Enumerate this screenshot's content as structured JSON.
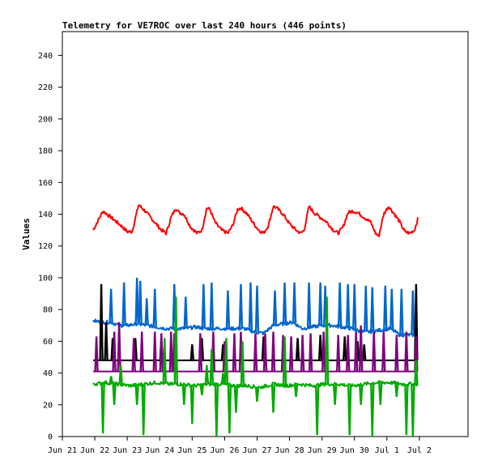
{
  "chart_data": {
    "type": "line",
    "title": "Telemetry for VE7ROC over last 240 hours (446 points)",
    "ylabel": "Values",
    "xlabel": "",
    "ylim": [
      0,
      255
    ],
    "xlim": [
      0,
      12.5
    ],
    "yticks": [
      0,
      20,
      40,
      60,
      80,
      100,
      120,
      140,
      160,
      180,
      200,
      220,
      240
    ],
    "x_tick_labels": [
      "Jun 21",
      "Jun 22",
      "Jun 23",
      "Jun 24",
      "Jun 25",
      "Jun 26",
      "Jun 27",
      "Jun 28",
      "Jun 29",
      "Jun 30",
      "Jul 1",
      "Jul 2"
    ],
    "x_tick_positions": [
      0,
      1,
      2,
      3,
      4,
      5,
      6,
      7,
      8,
      9,
      10,
      11
    ],
    "grid": false,
    "data_x_range": [
      0.95,
      10.95
    ],
    "series": [
      {
        "color": "#ff0000",
        "baseline": 133,
        "points": [
          [
            0.95,
            130
          ],
          [
            1.1,
            136
          ],
          [
            1.25,
            142
          ],
          [
            1.5,
            138
          ],
          [
            1.8,
            133
          ],
          [
            2.0,
            129
          ],
          [
            2.15,
            129
          ],
          [
            2.35,
            146
          ],
          [
            2.55,
            142
          ],
          [
            2.8,
            136
          ],
          [
            3.05,
            130
          ],
          [
            3.2,
            128
          ],
          [
            3.35,
            138
          ],
          [
            3.5,
            144
          ],
          [
            3.6,
            141
          ],
          [
            3.75,
            140
          ],
          [
            3.95,
            132
          ],
          [
            4.15,
            128
          ],
          [
            4.3,
            130
          ],
          [
            4.45,
            144
          ],
          [
            4.55,
            143
          ],
          [
            4.7,
            135
          ],
          [
            4.9,
            130
          ],
          [
            5.1,
            128
          ],
          [
            5.25,
            133
          ],
          [
            5.4,
            143
          ],
          [
            5.5,
            144
          ],
          [
            5.7,
            140
          ],
          [
            5.9,
            134
          ],
          [
            6.05,
            130
          ],
          [
            6.2,
            128
          ],
          [
            6.35,
            133
          ],
          [
            6.5,
            145
          ],
          [
            6.6,
            144
          ],
          [
            6.8,
            140
          ],
          [
            7.0,
            134
          ],
          [
            7.2,
            130
          ],
          [
            7.35,
            128
          ],
          [
            7.45,
            130
          ],
          [
            7.6,
            145
          ],
          [
            7.75,
            141
          ],
          [
            7.95,
            138
          ],
          [
            8.15,
            135
          ],
          [
            8.35,
            130
          ],
          [
            8.5,
            128
          ],
          [
            8.65,
            132
          ],
          [
            8.8,
            141
          ],
          [
            8.95,
            142
          ],
          [
            9.1,
            141
          ],
          [
            9.3,
            138
          ],
          [
            9.5,
            135
          ],
          [
            9.65,
            128
          ],
          [
            9.75,
            126
          ],
          [
            9.9,
            140
          ],
          [
            10.05,
            145
          ],
          [
            10.2,
            141
          ],
          [
            10.4,
            135
          ],
          [
            10.55,
            129
          ],
          [
            10.7,
            128
          ],
          [
            10.85,
            130
          ],
          [
            10.95,
            137
          ]
        ]
      },
      {
        "color": "#0066cc",
        "baseline": 70,
        "points": [
          [
            0.95,
            73
          ],
          [
            1.2,
            72
          ],
          [
            1.5,
            72
          ],
          [
            1.75,
            70
          ],
          [
            2.0,
            70
          ],
          [
            2.3,
            71
          ],
          [
            2.6,
            70
          ],
          [
            2.9,
            69
          ],
          [
            3.2,
            68
          ],
          [
            3.5,
            68
          ],
          [
            3.8,
            68
          ],
          [
            4.1,
            69
          ],
          [
            4.4,
            68
          ],
          [
            4.7,
            68
          ],
          [
            5.0,
            68
          ],
          [
            5.3,
            68
          ],
          [
            5.6,
            68
          ],
          [
            5.9,
            66
          ],
          [
            6.2,
            65
          ],
          [
            6.5,
            70
          ],
          [
            6.8,
            71
          ],
          [
            7.1,
            72
          ],
          [
            7.4,
            68
          ],
          [
            7.7,
            69
          ],
          [
            8.0,
            70
          ],
          [
            8.3,
            70
          ],
          [
            8.6,
            69
          ],
          [
            8.9,
            68
          ],
          [
            9.2,
            66
          ],
          [
            9.5,
            66
          ],
          [
            9.8,
            67
          ],
          [
            10.1,
            68
          ],
          [
            10.4,
            64
          ],
          [
            10.7,
            64
          ],
          [
            10.95,
            64
          ]
        ],
        "spikes": [
          [
            1.5,
            93
          ],
          [
            1.9,
            97
          ],
          [
            2.0,
            70
          ],
          [
            2.3,
            100
          ],
          [
            2.4,
            98
          ],
          [
            2.6,
            87
          ],
          [
            2.85,
            93
          ],
          [
            3.45,
            96
          ],
          [
            3.8,
            88
          ],
          [
            4.35,
            96
          ],
          [
            4.6,
            97
          ],
          [
            5.1,
            92
          ],
          [
            5.5,
            96
          ],
          [
            5.8,
            97
          ],
          [
            6.0,
            95
          ],
          [
            6.55,
            92
          ],
          [
            6.85,
            97
          ],
          [
            7.15,
            97
          ],
          [
            7.6,
            97
          ],
          [
            7.95,
            97
          ],
          [
            8.1,
            95
          ],
          [
            8.55,
            97
          ],
          [
            8.8,
            96
          ],
          [
            9.0,
            96
          ],
          [
            9.35,
            95
          ],
          [
            9.55,
            94
          ],
          [
            9.95,
            95
          ],
          [
            10.15,
            93
          ],
          [
            10.45,
            93
          ],
          [
            10.8,
            92
          ]
        ]
      },
      {
        "color": "#000000",
        "baseline": 48,
        "spikes": [
          [
            1.2,
            96
          ],
          [
            1.35,
            72
          ],
          [
            1.55,
            62
          ],
          [
            2.25,
            62
          ],
          [
            3.05,
            62
          ],
          [
            4.0,
            58
          ],
          [
            4.3,
            62
          ],
          [
            4.95,
            58
          ],
          [
            6.2,
            63
          ],
          [
            7.25,
            62
          ],
          [
            7.95,
            64
          ],
          [
            8.7,
            63
          ],
          [
            9.1,
            60
          ],
          [
            9.3,
            58
          ],
          [
            10.9,
            96
          ]
        ]
      },
      {
        "color": "#7f007f",
        "baseline": 41,
        "spikes": [
          [
            1.05,
            63
          ],
          [
            1.6,
            66
          ],
          [
            1.75,
            72
          ],
          [
            2.2,
            62
          ],
          [
            2.45,
            66
          ],
          [
            2.85,
            66
          ],
          [
            3.05,
            65
          ],
          [
            3.35,
            66
          ],
          [
            3.45,
            65
          ],
          [
            4.25,
            65
          ],
          [
            4.65,
            66
          ],
          [
            5.0,
            60
          ],
          [
            5.3,
            65
          ],
          [
            5.5,
            66
          ],
          [
            5.95,
            65
          ],
          [
            6.25,
            65
          ],
          [
            6.5,
            66
          ],
          [
            6.8,
            64
          ],
          [
            7.05,
            63
          ],
          [
            7.4,
            64
          ],
          [
            7.65,
            65
          ],
          [
            8.05,
            66
          ],
          [
            8.5,
            64
          ],
          [
            8.8,
            64
          ],
          [
            9.05,
            66
          ],
          [
            9.2,
            70
          ],
          [
            9.6,
            66
          ],
          [
            9.9,
            66
          ],
          [
            10.3,
            64
          ],
          [
            10.6,
            66
          ],
          [
            10.9,
            63
          ]
        ]
      },
      {
        "color": "#00aa00",
        "baseline": 34,
        "points": [
          [
            0.95,
            33
          ],
          [
            1.3,
            34
          ],
          [
            1.7,
            33
          ],
          [
            2.1,
            32
          ],
          [
            2.5,
            33
          ],
          [
            2.9,
            34
          ],
          [
            3.3,
            33
          ],
          [
            3.7,
            33
          ],
          [
            4.1,
            32
          ],
          [
            4.5,
            33
          ],
          [
            4.9,
            33
          ],
          [
            5.3,
            32
          ],
          [
            5.7,
            32
          ],
          [
            6.1,
            31
          ],
          [
            6.5,
            33
          ],
          [
            6.9,
            32
          ],
          [
            7.3,
            33
          ],
          [
            7.7,
            32
          ],
          [
            8.1,
            33
          ],
          [
            8.5,
            33
          ],
          [
            8.9,
            32
          ],
          [
            9.3,
            33
          ],
          [
            9.7,
            34
          ],
          [
            10.1,
            34
          ],
          [
            10.5,
            33
          ],
          [
            10.95,
            33
          ]
        ],
        "spikes": [
          [
            1.25,
            2
          ],
          [
            1.5,
            38
          ],
          [
            1.6,
            20
          ],
          [
            1.8,
            45
          ],
          [
            2.3,
            20
          ],
          [
            2.5,
            1
          ],
          [
            3.15,
            62
          ],
          [
            3.5,
            88
          ],
          [
            3.75,
            20
          ],
          [
            4.0,
            8
          ],
          [
            4.3,
            26
          ],
          [
            4.45,
            45
          ],
          [
            4.6,
            55
          ],
          [
            4.75,
            0
          ],
          [
            4.95,
            40
          ],
          [
            5.05,
            62
          ],
          [
            5.15,
            2
          ],
          [
            5.35,
            15
          ],
          [
            5.55,
            60
          ],
          [
            6.0,
            22
          ],
          [
            6.5,
            15
          ],
          [
            6.85,
            63
          ],
          [
            7.2,
            25
          ],
          [
            7.85,
            1
          ],
          [
            8.15,
            88
          ],
          [
            8.4,
            20
          ],
          [
            8.85,
            1
          ],
          [
            9.2,
            20
          ],
          [
            9.55,
            0
          ],
          [
            9.8,
            20
          ],
          [
            10.3,
            25
          ],
          [
            10.6,
            1
          ],
          [
            10.8,
            0
          ],
          [
            10.9,
            48
          ]
        ]
      }
    ]
  }
}
